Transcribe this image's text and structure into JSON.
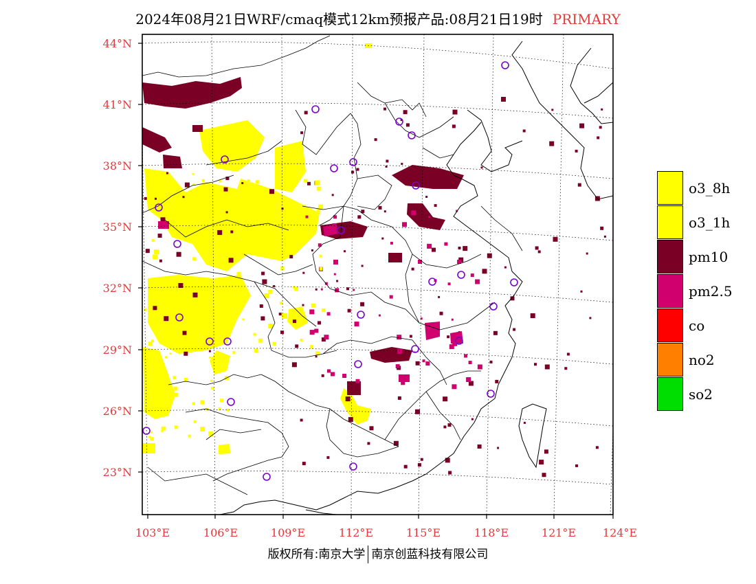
{
  "title": {
    "main": "2024年08月21日WRF/cmaq模式12km预报产品:08月21日19时",
    "tag": "PRIMARY"
  },
  "axes": {
    "lat_labels": [
      "44°N",
      "41°N",
      "38°N",
      "35°N",
      "32°N",
      "29°N",
      "26°N",
      "23°N"
    ],
    "lon_labels": [
      "103°E",
      "106°E",
      "109°E",
      "112°E",
      "115°E",
      "118°E",
      "121°E",
      "124°E"
    ]
  },
  "legend": [
    {
      "label": "o3_8h",
      "color": "#ffff00"
    },
    {
      "label": "o3_1h",
      "color": "#ffff00"
    },
    {
      "label": "pm10",
      "color": "#7a0026"
    },
    {
      "label": "pm2.5",
      "color": "#d0006e"
    },
    {
      "label": "co",
      "color": "#ff0000"
    },
    {
      "label": "no2",
      "color": "#ff7f00"
    },
    {
      "label": "so2",
      "color": "#00dd00"
    }
  ],
  "colors": {
    "o3": "#ffff00",
    "pm10": "#7a0026",
    "pm25": "#d0006e",
    "station": "#7a00d0",
    "border": "#000000"
  },
  "footer": {
    "left": "版权所有:南京大学",
    "right": "南京创蓝科技有限公司"
  }
}
